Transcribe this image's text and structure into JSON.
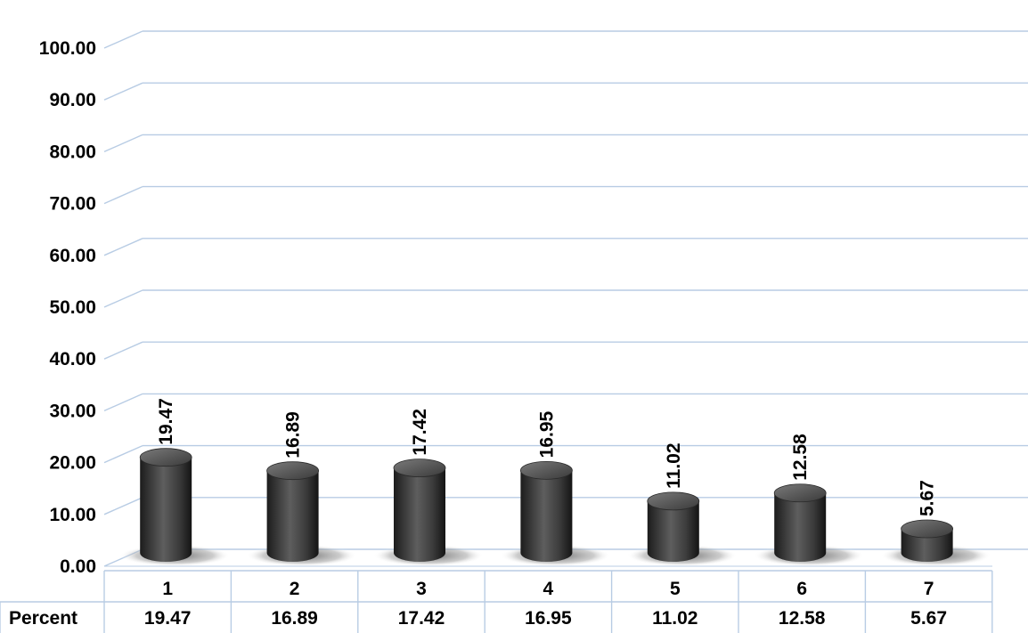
{
  "chart_data": {
    "type": "bar",
    "bar_style": "3d-cylinder",
    "categories": [
      "1",
      "2",
      "3",
      "4",
      "5",
      "6",
      "7"
    ],
    "series": [
      {
        "name": "Percent",
        "values": [
          19.47,
          16.89,
          17.42,
          16.95,
          11.02,
          12.58,
          5.67
        ]
      }
    ],
    "yticks": [
      "0.00",
      "10.00",
      "20.00",
      "30.00",
      "40.00",
      "50.00",
      "60.00",
      "70.00",
      "80.00",
      "90.00",
      "100.00"
    ],
    "ylim": [
      0,
      100
    ],
    "grid": true,
    "data_labels": true,
    "data_table": true,
    "colors": {
      "bar": "#4a4a4a",
      "grid": "#b8cce4",
      "table_border": "#b8cce4"
    }
  }
}
